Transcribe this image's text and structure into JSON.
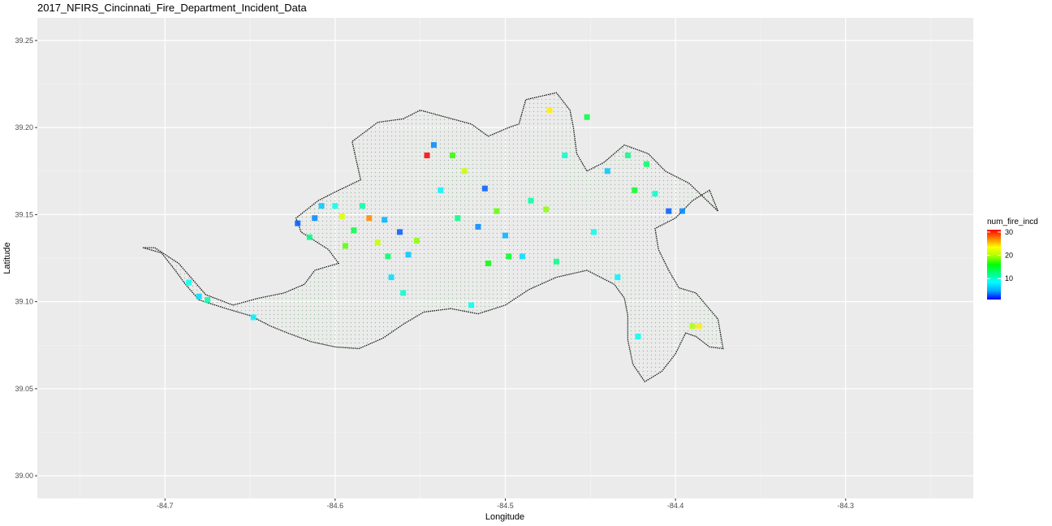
{
  "chart_data": {
    "type": "heatmap",
    "title": "2017_NFIRS_Cincinnati_Fire_Department_Incident_Data",
    "xlabel": "Longitude",
    "ylabel": "Latitude",
    "xlim": [
      -84.775,
      -84.225
    ],
    "ylim": [
      38.987,
      39.263
    ],
    "x_ticks": [
      -84.7,
      -84.6,
      -84.5,
      -84.4,
      -84.3
    ],
    "x_tick_labels": [
      "-84.7",
      "-84.6",
      "-84.5",
      "-84.4",
      "-84.3"
    ],
    "y_ticks": [
      39.0,
      39.05,
      39.1,
      39.15,
      39.2,
      39.25
    ],
    "y_tick_labels": [
      "39.00",
      "39.05",
      "39.10",
      "39.15",
      "39.20",
      "39.25"
    ],
    "grid": true,
    "legend": {
      "title": "num_fire_incd",
      "position": "right",
      "min": 1,
      "max": 31,
      "breaks": [
        10,
        20,
        30
      ],
      "break_labels": [
        "10",
        "20",
        "30"
      ],
      "colors": [
        "#0000ff",
        "#00aaff",
        "#00ffff",
        "#00ff80",
        "#00ff00",
        "#aaff00",
        "#ffff00",
        "#ff8000",
        "#ff0000"
      ]
    },
    "boundary": [
      [
        -84.713,
        39.131
      ],
      [
        -84.702,
        39.128
      ],
      [
        -84.694,
        39.118
      ],
      [
        -84.688,
        39.11
      ],
      [
        -84.68,
        39.101
      ],
      [
        -84.664,
        39.096
      ],
      [
        -84.65,
        39.092
      ],
      [
        -84.638,
        39.086
      ],
      [
        -84.628,
        39.082
      ],
      [
        -84.614,
        39.077
      ],
      [
        -84.6,
        39.074
      ],
      [
        -84.586,
        39.073
      ],
      [
        -84.572,
        39.079
      ],
      [
        -84.56,
        39.087
      ],
      [
        -84.548,
        39.094
      ],
      [
        -84.532,
        39.096
      ],
      [
        -84.516,
        39.093
      ],
      [
        -84.5,
        39.098
      ],
      [
        -84.486,
        39.107
      ],
      [
        -84.47,
        39.114
      ],
      [
        -84.452,
        39.118
      ],
      [
        -84.436,
        39.11
      ],
      [
        -84.43,
        39.102
      ],
      [
        -84.428,
        39.092
      ],
      [
        -84.428,
        39.078
      ],
      [
        -84.425,
        39.064
      ],
      [
        -84.418,
        39.054
      ],
      [
        -84.408,
        39.06
      ],
      [
        -84.4,
        39.07
      ],
      [
        -84.394,
        39.082
      ],
      [
        -84.388,
        39.08
      ],
      [
        -84.38,
        39.074
      ],
      [
        -84.372,
        39.073
      ],
      [
        -84.375,
        39.09
      ],
      [
        -84.388,
        39.105
      ],
      [
        -84.398,
        39.108
      ],
      [
        -84.404,
        39.118
      ],
      [
        -84.41,
        39.13
      ],
      [
        -84.412,
        39.142
      ],
      [
        -84.4,
        39.148
      ],
      [
        -84.39,
        39.158
      ],
      [
        -84.38,
        39.164
      ],
      [
        -84.375,
        39.152
      ],
      [
        -84.392,
        39.168
      ],
      [
        -84.406,
        39.175
      ],
      [
        -84.416,
        39.185
      ],
      [
        -84.43,
        39.19
      ],
      [
        -84.442,
        39.18
      ],
      [
        -84.452,
        39.175
      ],
      [
        -84.458,
        39.185
      ],
      [
        -84.46,
        39.2
      ],
      [
        -84.462,
        39.21
      ],
      [
        -84.47,
        39.22
      ],
      [
        -84.488,
        39.216
      ],
      [
        -84.492,
        39.202
      ],
      [
        -84.498,
        39.2
      ],
      [
        -84.51,
        39.195
      ],
      [
        -84.52,
        39.202
      ],
      [
        -84.535,
        39.206
      ],
      [
        -84.55,
        39.21
      ],
      [
        -84.56,
        39.205
      ],
      [
        -84.575,
        39.203
      ],
      [
        -84.59,
        39.192
      ],
      [
        -84.585,
        39.17
      ],
      [
        -84.6,
        39.163
      ],
      [
        -84.61,
        39.158
      ],
      [
        -84.623,
        39.148
      ],
      [
        -84.62,
        39.14
      ],
      [
        -84.604,
        39.13
      ],
      [
        -84.598,
        39.122
      ],
      [
        -84.612,
        39.118
      ],
      [
        -84.618,
        39.11
      ],
      [
        -84.63,
        39.105
      ],
      [
        -84.645,
        39.102
      ],
      [
        -84.66,
        39.098
      ],
      [
        -84.676,
        39.104
      ],
      [
        -84.692,
        39.122
      ],
      [
        -84.706,
        39.131
      ],
      [
        -84.713,
        39.131
      ]
    ],
    "cells": [
      {
        "x": -84.686,
        "y": 39.111,
        "value": 9
      },
      {
        "x": -84.68,
        "y": 39.103,
        "value": 7
      },
      {
        "x": -84.675,
        "y": 39.101,
        "value": 11
      },
      {
        "x": -84.648,
        "y": 39.091,
        "value": 8
      },
      {
        "x": -84.622,
        "y": 39.145,
        "value": 3
      },
      {
        "x": -84.615,
        "y": 39.137,
        "value": 12
      },
      {
        "x": -84.612,
        "y": 39.148,
        "value": 4
      },
      {
        "x": -84.608,
        "y": 39.155,
        "value": 6
      },
      {
        "x": -84.6,
        "y": 39.155,
        "value": 9
      },
      {
        "x": -84.596,
        "y": 39.149,
        "value": 22
      },
      {
        "x": -84.594,
        "y": 39.132,
        "value": 18
      },
      {
        "x": -84.589,
        "y": 39.141,
        "value": 14
      },
      {
        "x": -84.584,
        "y": 39.155,
        "value": 11
      },
      {
        "x": -84.58,
        "y": 39.148,
        "value": 27
      },
      {
        "x": -84.575,
        "y": 39.134,
        "value": 21
      },
      {
        "x": -84.571,
        "y": 39.147,
        "value": 5
      },
      {
        "x": -84.569,
        "y": 39.126,
        "value": 13
      },
      {
        "x": -84.567,
        "y": 39.114,
        "value": 7
      },
      {
        "x": -84.562,
        "y": 39.14,
        "value": 3
      },
      {
        "x": -84.56,
        "y": 39.105,
        "value": 10
      },
      {
        "x": -84.557,
        "y": 39.127,
        "value": 6
      },
      {
        "x": -84.552,
        "y": 39.135,
        "value": 19
      },
      {
        "x": -84.546,
        "y": 39.184,
        "value": 31
      },
      {
        "x": -84.542,
        "y": 39.19,
        "value": 4
      },
      {
        "x": -84.538,
        "y": 39.164,
        "value": 8
      },
      {
        "x": -84.531,
        "y": 39.184,
        "value": 17
      },
      {
        "x": -84.528,
        "y": 39.148,
        "value": 12
      },
      {
        "x": -84.524,
        "y": 39.175,
        "value": 21
      },
      {
        "x": -84.52,
        "y": 39.098,
        "value": 9
      },
      {
        "x": -84.516,
        "y": 39.143,
        "value": 4
      },
      {
        "x": -84.512,
        "y": 39.165,
        "value": 3
      },
      {
        "x": -84.51,
        "y": 39.122,
        "value": 16
      },
      {
        "x": -84.505,
        "y": 39.152,
        "value": 18
      },
      {
        "x": -84.5,
        "y": 39.138,
        "value": 5
      },
      {
        "x": -84.498,
        "y": 39.126,
        "value": 15
      },
      {
        "x": -84.49,
        "y": 39.126,
        "value": 7
      },
      {
        "x": -84.485,
        "y": 39.158,
        "value": 11
      },
      {
        "x": -84.476,
        "y": 39.153,
        "value": 19
      },
      {
        "x": -84.474,
        "y": 39.21,
        "value": 24
      },
      {
        "x": -84.47,
        "y": 39.123,
        "value": 12
      },
      {
        "x": -84.465,
        "y": 39.184,
        "value": 10
      },
      {
        "x": -84.452,
        "y": 39.206,
        "value": 14
      },
      {
        "x": -84.448,
        "y": 39.14,
        "value": 9
      },
      {
        "x": -84.44,
        "y": 39.175,
        "value": 6
      },
      {
        "x": -84.434,
        "y": 39.114,
        "value": 8
      },
      {
        "x": -84.428,
        "y": 39.184,
        "value": 12
      },
      {
        "x": -84.424,
        "y": 39.164,
        "value": 15
      },
      {
        "x": -84.422,
        "y": 39.08,
        "value": 9
      },
      {
        "x": -84.417,
        "y": 39.179,
        "value": 13
      },
      {
        "x": -84.412,
        "y": 39.162,
        "value": 10
      },
      {
        "x": -84.404,
        "y": 39.152,
        "value": 3
      },
      {
        "x": -84.396,
        "y": 39.152,
        "value": 4
      },
      {
        "x": -84.39,
        "y": 39.086,
        "value": 20
      },
      {
        "x": -84.386,
        "y": 39.086,
        "value": 24
      }
    ]
  }
}
